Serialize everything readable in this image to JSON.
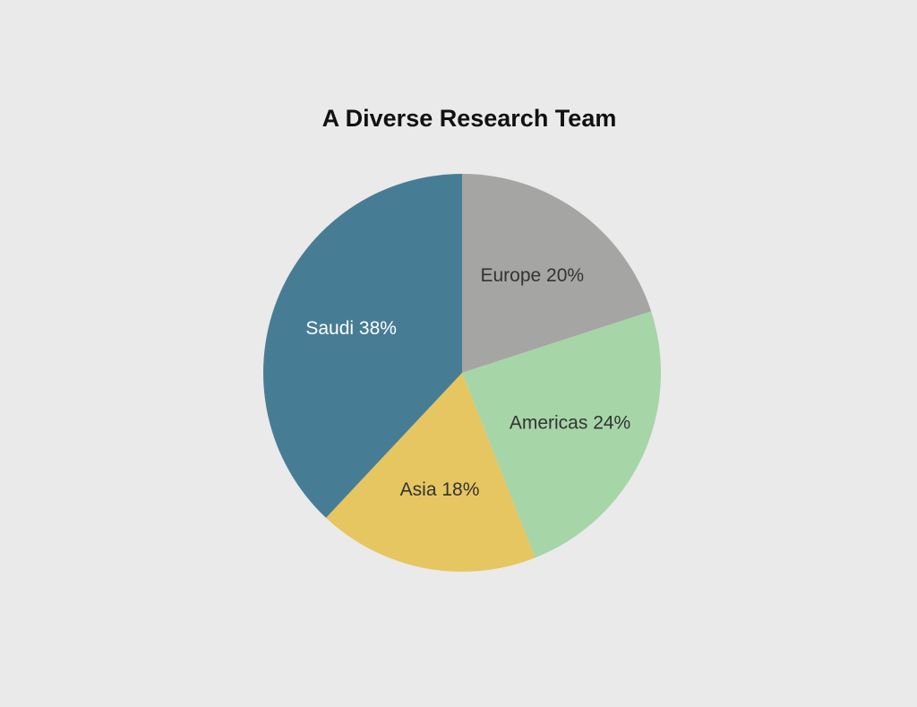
{
  "chart_data": {
    "type": "pie",
    "title": "A Diverse Research Team",
    "categories": [
      "Europe",
      "Americas",
      "Asia",
      "Saudi"
    ],
    "values": [
      20,
      24,
      18,
      38
    ],
    "value_labels": [
      "20%",
      "24%",
      "18%",
      "38%"
    ],
    "colors": [
      "#a5a5a3",
      "#a6d5a8",
      "#e6c661",
      "#477d94"
    ]
  }
}
